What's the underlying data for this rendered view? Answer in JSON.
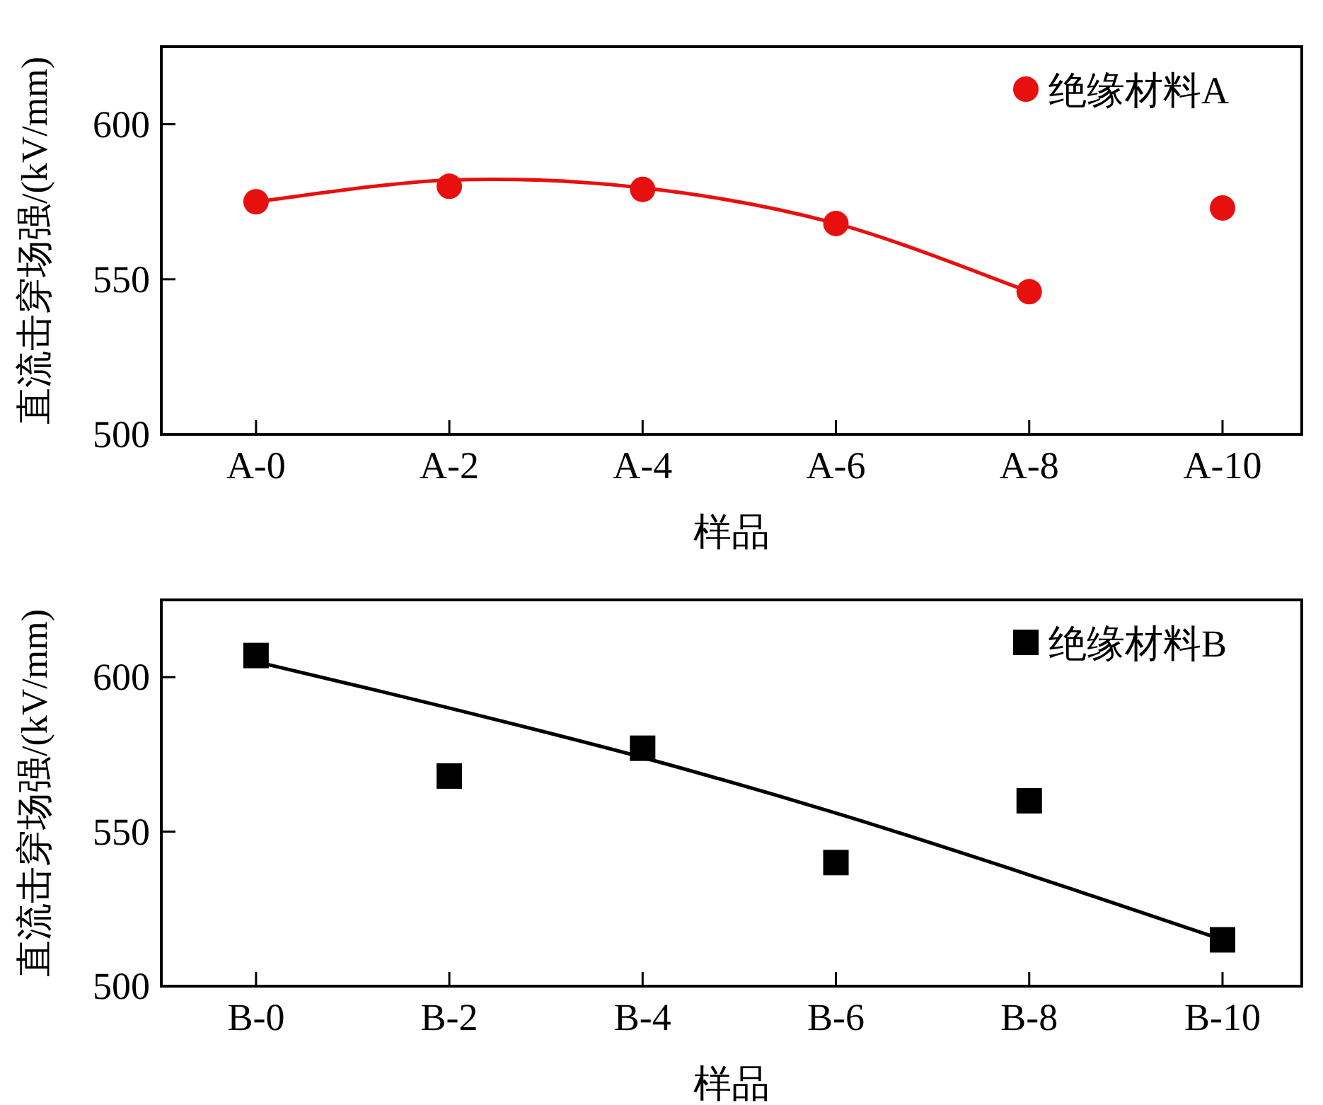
{
  "chart_data": [
    {
      "type": "scatter",
      "categories": [
        "A-0",
        "A-2",
        "A-4",
        "A-6",
        "A-8",
        "A-10"
      ],
      "xlabel": "样品",
      "ylabel": "直流击穿场强/(kV/mm)",
      "ylim": [
        500,
        625
      ],
      "yticks": [
        500,
        550,
        600
      ],
      "legend": "top right",
      "series": [
        {
          "name": "绝缘材料A",
          "color": "#e8100f",
          "marker": "circle",
          "values": [
            575,
            580,
            579,
            568,
            546,
            573
          ]
        },
        {
          "type": "line",
          "color": "#e8100f",
          "marker": "none",
          "values": [
            575,
            582,
            579.5,
            568,
            546,
            null
          ]
        }
      ]
    },
    {
      "type": "scatter",
      "categories": [
        "B-0",
        "B-2",
        "B-4",
        "B-6",
        "B-8",
        "B-10"
      ],
      "xlabel": "样品",
      "ylabel": "直流击穿场强/(kV/mm)",
      "ylim": [
        500,
        625
      ],
      "yticks": [
        500,
        550,
        600
      ],
      "legend": "top right",
      "series": [
        {
          "name": "绝缘材料B",
          "color": "#000000",
          "marker": "square",
          "values": [
            607,
            568,
            577,
            540,
            560,
            515
          ]
        },
        {
          "type": "line",
          "color": "#000000",
          "marker": "none",
          "values": [
            605,
            590,
            574,
            556,
            536,
            515
          ]
        }
      ]
    }
  ]
}
